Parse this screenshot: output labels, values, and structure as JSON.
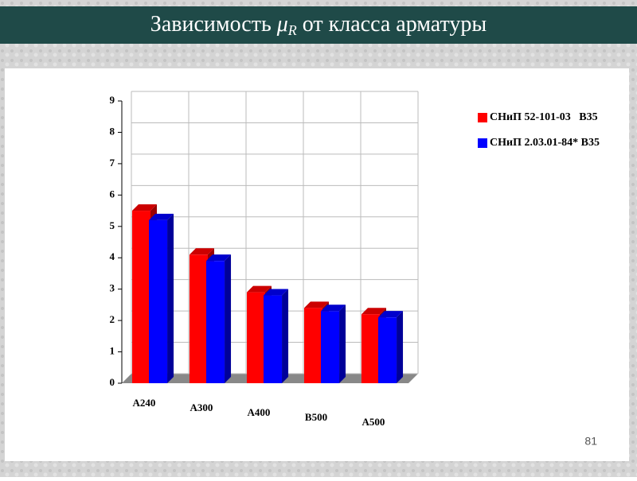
{
  "chart_data": {
    "type": "bar",
    "title": {
      "prefix": "Зависимость",
      "symbol": "μ",
      "subscript": "R",
      "suffix": "от класса арматуры"
    },
    "categories": [
      "A240",
      "A300",
      "A400",
      "B500",
      "A500"
    ],
    "series": [
      {
        "name": "СНиП 52-101-03   В35",
        "color": "#ff0000",
        "values": [
          5.5,
          4.1,
          2.9,
          2.4,
          2.2
        ]
      },
      {
        "name": "СНиП 2.03.01-84* В35",
        "color": "#0000ff",
        "values": [
          5.2,
          3.9,
          2.8,
          2.3,
          2.1
        ]
      }
    ],
    "ylim": [
      0,
      9
    ],
    "yticks": [
      0,
      1,
      2,
      3,
      4,
      5,
      6,
      7,
      8,
      9
    ],
    "grid": true,
    "legend": "right",
    "page_number": "81"
  }
}
